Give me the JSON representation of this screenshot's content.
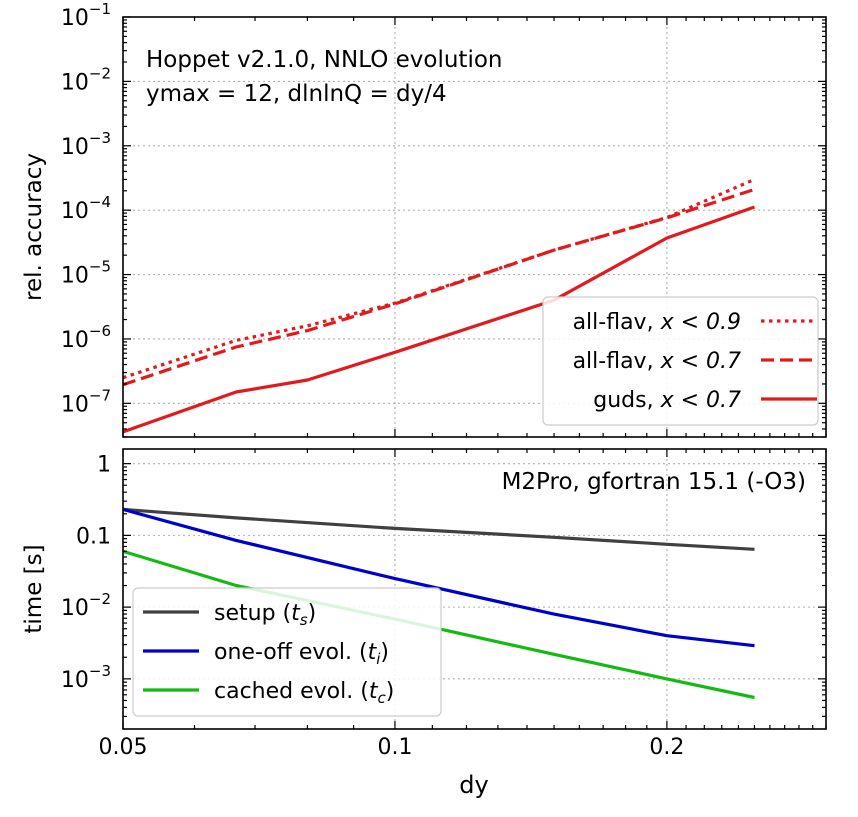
{
  "chart_data": [
    {
      "type": "line",
      "xscale": "log",
      "yscale": "log",
      "xlim": [
        0.05,
        0.3
      ],
      "ylim": [
        3e-08,
        0.1
      ],
      "xticks": [
        0.05,
        0.1,
        0.2
      ],
      "xtick_labels": [
        "0.05",
        "0.1",
        "0.2"
      ],
      "yticks": [
        1e-07,
        1e-06,
        1e-05,
        0.0001,
        0.001,
        0.01,
        0.1
      ],
      "ytick_labels": [
        {
          "base": "10",
          "exp": "−7"
        },
        {
          "base": "10",
          "exp": "−6"
        },
        {
          "base": "10",
          "exp": "−5"
        },
        {
          "base": "10",
          "exp": "−4"
        },
        {
          "base": "10",
          "exp": "−3"
        },
        {
          "base": "10",
          "exp": "−2"
        },
        {
          "base": "10",
          "exp": "−1"
        }
      ],
      "ylabel": "rel. accuracy",
      "annotations": [
        "Hoppet v2.1.0, NNLO evolution",
        "ymax = 12, dlnlnQ = dy/4"
      ],
      "legend_location": "lower right",
      "series": [
        {
          "id": "allflav09",
          "legend_prefix": "all-flav, ",
          "legend_math": "x < 0.9",
          "color": "#e31a1c",
          "style": "dotted",
          "x": [
            0.05,
            0.0667,
            0.08,
            0.1,
            0.15,
            0.2,
            0.25
          ],
          "y": [
            2.5e-07,
            9.5e-07,
            1.6e-06,
            3.6e-06,
            2.4e-05,
            7.7e-05,
            0.0003
          ]
        },
        {
          "id": "allflav07",
          "legend_prefix": "all-flav, ",
          "legend_math": "x < 0.7",
          "color": "#e31a1c",
          "style": "dashed",
          "x": [
            0.05,
            0.0667,
            0.08,
            0.1,
            0.15,
            0.2,
            0.25
          ],
          "y": [
            1.95e-07,
            7.5e-07,
            1.35e-06,
            3.5e-06,
            2.4e-05,
            7.6e-05,
            0.00021
          ]
        },
        {
          "id": "guds07",
          "legend_prefix": "guds, ",
          "legend_math": "x < 0.7",
          "color": "#e31a1c",
          "style": "solid",
          "x": [
            0.05,
            0.0667,
            0.08,
            0.1,
            0.15,
            0.2,
            0.25
          ],
          "y": [
            3.6e-08,
            1.5e-07,
            2.3e-07,
            6.2e-07,
            4e-06,
            3.7e-05,
            0.000112
          ]
        }
      ]
    },
    {
      "type": "line",
      "xscale": "log",
      "yscale": "log",
      "xlim": [
        0.05,
        0.3
      ],
      "ylim": [
        0.0002,
        1.6
      ],
      "xticks": [
        0.05,
        0.1,
        0.2
      ],
      "xtick_labels": [
        "0.05",
        "0.1",
        "0.2"
      ],
      "yticks": [
        0.001,
        0.01,
        0.1,
        1
      ],
      "ytick_labels": [
        {
          "base": "10",
          "exp": "−3"
        },
        {
          "base": "10",
          "exp": "−2"
        },
        {
          "base": "0.1",
          "exp": ""
        },
        {
          "base": "1",
          "exp": ""
        }
      ],
      "xlabel": "dy",
      "ylabel": "time [s]",
      "annotations": [
        "M2Pro, gfortran 15.1 (-O3)"
      ],
      "legend_location": "lower left",
      "series": [
        {
          "id": "setup",
          "legend_prefix": "setup (",
          "legend_sym": "t",
          "legend_sub": "s",
          "legend_suffix": ")",
          "color": "#404040",
          "style": "solid",
          "x": [
            0.05,
            0.0667,
            0.1,
            0.15,
            0.2,
            0.25
          ],
          "y": [
            0.23,
            0.175,
            0.125,
            0.094,
            0.075,
            0.064
          ]
        },
        {
          "id": "oneoff",
          "legend_prefix": "one-off evol. (",
          "legend_sym": "t",
          "legend_sub": "i",
          "legend_suffix": ")",
          "color": "#0000cc",
          "style": "solid",
          "x": [
            0.05,
            0.0667,
            0.1,
            0.15,
            0.2,
            0.25
          ],
          "y": [
            0.23,
            0.085,
            0.025,
            0.008,
            0.004,
            0.0029
          ]
        },
        {
          "id": "cached",
          "legend_prefix": "cached evol. (",
          "legend_sym": "t",
          "legend_sub": "c",
          "legend_suffix": ")",
          "color": "#11bb11",
          "style": "solid",
          "x": [
            0.05,
            0.0667,
            0.1,
            0.15,
            0.2,
            0.25
          ],
          "y": [
            0.06,
            0.02,
            0.0068,
            0.0022,
            0.001,
            0.00055
          ]
        }
      ]
    }
  ]
}
